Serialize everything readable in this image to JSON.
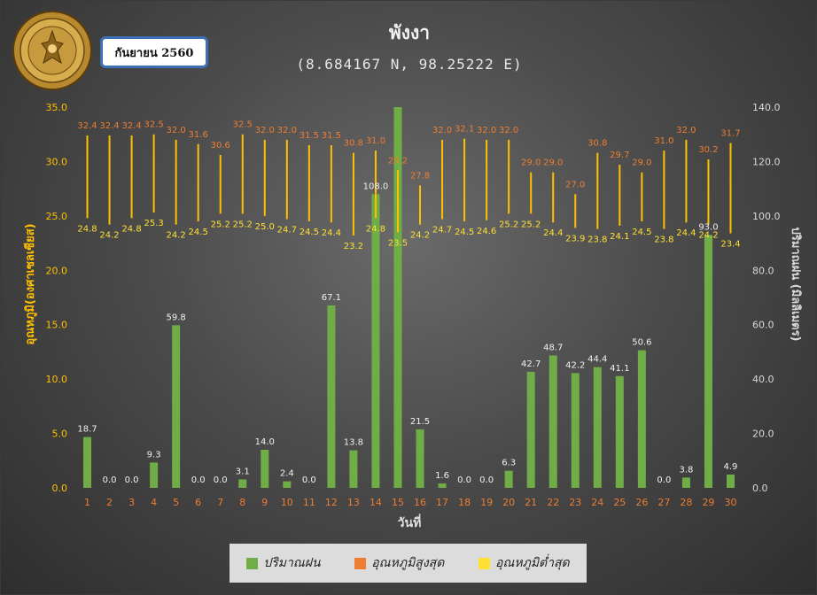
{
  "header": {
    "title": "พังงา",
    "subtitle": "(8.684167 N, 98.25222 E)",
    "date_badge": "กันยายน 2560",
    "logo_text": "กรมอุตุนิยมวิทยา METEOROLOGICAL DEPARTMENT"
  },
  "colors": {
    "rain": "#70ad47",
    "max_temp_label": "#ed7d31",
    "min_temp_label": "#ffe033",
    "temp_bar": "#ffc000",
    "left_axis": "#ffc000",
    "right_axis": "#d9d9d9",
    "category_axis": "#ed7d31"
  },
  "chart_data": {
    "type": "bar",
    "xlabel": "วันที่",
    "ylabel_left": "อุณหภูมิ(องศาเซลเซียส)",
    "ylabel_right": "ปริมาณฝน (มิลลิเมตร)",
    "ylim_left": [
      0,
      35
    ],
    "ylim_right": [
      0,
      140
    ],
    "yticks_left": [
      "0.0",
      "5.0",
      "10.0",
      "15.0",
      "20.0",
      "25.0",
      "30.0",
      "35.0"
    ],
    "yticks_right": [
      "0.0",
      "20.0",
      "40.0",
      "60.0",
      "80.0",
      "100.0",
      "120.0",
      "140.0"
    ],
    "categories": [
      "1",
      "2",
      "3",
      "4",
      "5",
      "6",
      "7",
      "8",
      "9",
      "10",
      "11",
      "12",
      "13",
      "14",
      "15",
      "16",
      "17",
      "18",
      "19",
      "20",
      "21",
      "22",
      "23",
      "24",
      "25",
      "26",
      "27",
      "28",
      "29",
      "30"
    ],
    "grid": false,
    "legend_position": "bottom",
    "series": [
      {
        "name": "ปริมาณฝน",
        "axis": "right",
        "type": "bar",
        "values": [
          18.7,
          0.0,
          0.0,
          9.3,
          59.8,
          0.0,
          0.0,
          3.1,
          14.0,
          2.4,
          0.0,
          67.1,
          13.8,
          108.0,
          140.0,
          21.5,
          1.6,
          0.0,
          0.0,
          6.3,
          42.7,
          48.7,
          42.2,
          44.4,
          41.1,
          50.6,
          0.0,
          3.8,
          93.0,
          4.9
        ],
        "labels": [
          "18.7",
          "0.0",
          "0.0",
          "9.3",
          "59.8",
          "0.0",
          "0.0",
          "3.1",
          "14.0",
          "2.4",
          "0.0",
          "67.1",
          "13.8",
          "108.0",
          "",
          "21.5",
          "1.6",
          "0.0",
          "0.0",
          "6.3",
          "42.7",
          "48.7",
          "42.2",
          "44.4",
          "41.1",
          "50.6",
          "0.0",
          "3.8",
          "93.0",
          "4.9"
        ]
      },
      {
        "name": "อุณหภูมิสูงสุด",
        "axis": "left",
        "type": "range-top",
        "values": [
          32.4,
          32.4,
          32.4,
          32.5,
          32.0,
          31.6,
          30.6,
          32.5,
          32.0,
          32.0,
          31.5,
          31.5,
          30.8,
          31.0,
          29.2,
          27.8,
          32.0,
          32.1,
          32.0,
          32.0,
          29.0,
          29.0,
          27.0,
          30.8,
          29.7,
          29.0,
          31.0,
          32.0,
          30.2,
          31.7
        ]
      },
      {
        "name": "อุณหภูมิต่ำสุด",
        "axis": "left",
        "type": "range-bottom",
        "values": [
          24.8,
          24.2,
          24.8,
          25.3,
          24.2,
          24.5,
          25.2,
          25.2,
          25.0,
          24.7,
          24.5,
          24.4,
          23.2,
          24.8,
          23.5,
          24.2,
          24.7,
          24.5,
          24.6,
          25.2,
          25.2,
          24.4,
          23.9,
          23.8,
          24.1,
          24.5,
          23.8,
          24.4,
          24.2,
          23.4
        ]
      }
    ]
  },
  "legend": {
    "rain": "ปริมาณฝน",
    "max": "อุณหภูมิสูงสุด",
    "min": "อุณหภูมิต่ำสุด"
  }
}
